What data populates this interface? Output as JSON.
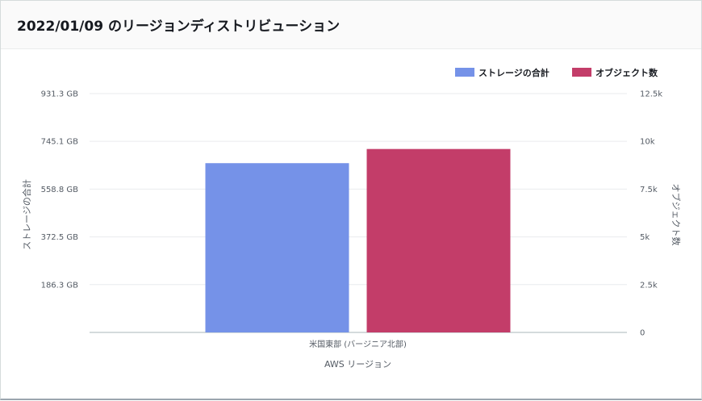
{
  "header": {
    "title": "2022/01/09 のリージョンディストリビューション"
  },
  "chart_data": {
    "type": "bar",
    "categories": [
      "米国東部 (バージニア北部)"
    ],
    "series": [
      {
        "name": "ストレージの合計",
        "axis": "left",
        "values_gb": [
          660
        ],
        "color": "#7592e8"
      },
      {
        "name": "オブジェクト数",
        "axis": "right",
        "values": [
          9600
        ],
        "color": "#c33d69"
      }
    ],
    "xlabel": "AWS リージョン",
    "ylabel_left": "ストレージの合計",
    "ylabel_right": "オブジェクト数",
    "left_axis": {
      "ylim": [
        0,
        931.3
      ],
      "ticks": [
        0,
        186.3,
        372.5,
        558.8,
        745.1,
        931.3
      ],
      "tick_labels": [
        "",
        "186.3 GB",
        "372.5 GB",
        "558.8 GB",
        "745.1 GB",
        "931.3 GB"
      ]
    },
    "right_axis": {
      "ylim": [
        0,
        12500
      ],
      "ticks": [
        0,
        2500,
        5000,
        7500,
        10000,
        12500
      ],
      "tick_labels": [
        "0",
        "2.5k",
        "5k",
        "7.5k",
        "10k",
        "12.5k"
      ]
    },
    "grid": true,
    "legend_position": "top-right"
  }
}
